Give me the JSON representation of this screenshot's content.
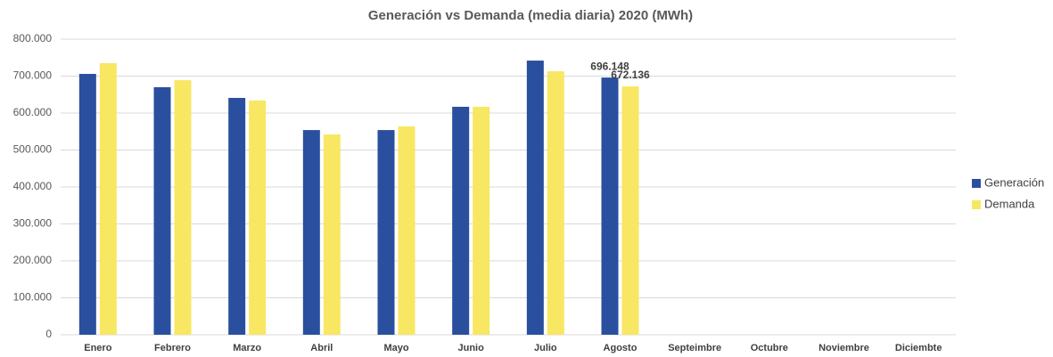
{
  "chart_data": {
    "type": "bar",
    "title": "Generación vs Demanda (media diaria) 2020 (MWh)",
    "categories": [
      "Enero",
      "Febrero",
      "Marzo",
      "Abril",
      "Mayo",
      "Junio",
      "Julio",
      "Agosto",
      "Septeimbre",
      "Octubre",
      "Noviembre",
      "Diciembte"
    ],
    "series": [
      {
        "name": "Generación",
        "color": "#2b4f9f",
        "values": [
          706000,
          670000,
          641000,
          554000,
          554000,
          617000,
          742000,
          696148,
          null,
          null,
          null,
          null
        ],
        "value_labels": [
          null,
          null,
          null,
          null,
          null,
          null,
          null,
          "696.148",
          null,
          null,
          null,
          null
        ]
      },
      {
        "name": "Demanda",
        "color": "#f7e763",
        "values": [
          735000,
          689000,
          634000,
          542000,
          564000,
          617000,
          713000,
          672136,
          null,
          null,
          null,
          null
        ],
        "value_labels": [
          null,
          null,
          null,
          null,
          null,
          null,
          null,
          "672.136",
          null,
          null,
          null,
          null
        ]
      }
    ],
    "ylim": [
      0,
      800000
    ],
    "yticks": [
      0,
      {
        "value": 100000,
        "label": "100.000"
      },
      {
        "value": 200000,
        "label": "200.000"
      },
      {
        "value": 300000,
        "label": "300.000"
      },
      {
        "value": 400000,
        "label": "400.000"
      },
      {
        "value": 500000,
        "label": "500.000"
      },
      {
        "value": 600000,
        "label": "600.000"
      },
      {
        "value": 700000,
        "label": "700.000"
      },
      {
        "value": 800000,
        "label": "800.000"
      }
    ],
    "grid": true,
    "legend": "right"
  }
}
